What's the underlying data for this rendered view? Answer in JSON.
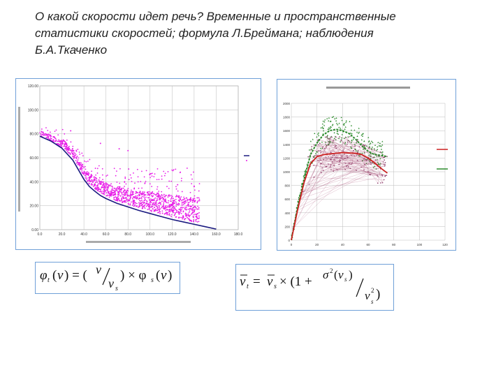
{
  "slide": {
    "title_lines": [
      "О какой скорости идет речь? Временные  и пространственные",
      "статистики скоростей; формула Л.Брейманa; наблюдения",
      "Б.А.Ткаченко"
    ]
  },
  "colors": {
    "frame": "#6fa0d8",
    "scatter_points": "#e81fe8",
    "model_line": "#1a1a80",
    "red_series": "#cc2020",
    "green_series": "#2a8a2a"
  },
  "chart_data": [
    {
      "type": "scatter",
      "title": "",
      "xlabel": "",
      "ylabel": "",
      "x_ticks": [
        "0.0",
        "20.0",
        "40.0",
        "60.0",
        "80.0",
        "100.0",
        "120.0",
        "140.0",
        "160.0",
        "180.0"
      ],
      "y_ticks": [
        "0.00",
        "20.00",
        "40.00",
        "60.00",
        "80.00",
        "100.00",
        "120.00"
      ],
      "xlim": [
        0,
        180
      ],
      "ylim": [
        0,
        120
      ],
      "grid": true,
      "legend": "right",
      "series": [
        {
          "kind": "line",
          "x": [
            0,
            10,
            20,
            30,
            35,
            40,
            45,
            50,
            55,
            60,
            70,
            80,
            90,
            100,
            110,
            120,
            130,
            140,
            150,
            160
          ],
          "y": [
            78,
            74,
            68,
            58,
            50,
            42,
            36,
            32,
            28.5,
            26,
            22,
            19,
            16,
            13.5,
            11,
            8.5,
            6.5,
            4.5,
            2.5,
            0.5
          ]
        },
        {
          "kind": "scatter",
          "description_points": "dense magenta cloud above the model curve, x 0–145, y 15–95"
        }
      ]
    },
    {
      "type": "line",
      "title": "",
      "x_ticks": [
        "0",
        "20",
        "40",
        "60",
        "80",
        "100",
        "120"
      ],
      "y_ticks": [
        "0",
        "200",
        "400",
        "600",
        "800",
        "1000",
        "1200",
        "1400",
        "1600",
        "1800",
        "2000"
      ],
      "xlim": [
        0,
        120
      ],
      "ylim": [
        0,
        2000
      ],
      "grid": true,
      "legend": "right",
      "series": [
        {
          "kind": "line",
          "color": "red",
          "x": [
            0,
            5,
            10,
            15,
            20,
            25,
            30,
            35,
            40,
            45,
            50,
            55,
            60,
            65,
            70,
            75
          ],
          "y": [
            0,
            450,
            850,
            1120,
            1220,
            1250,
            1260,
            1270,
            1280,
            1275,
            1270,
            1250,
            1200,
            1130,
            1050,
            980
          ]
        },
        {
          "kind": "line",
          "color": "green",
          "x": [
            0,
            5,
            10,
            15,
            20,
            25,
            30,
            35,
            40,
            45,
            50,
            55,
            60,
            65,
            70,
            75
          ],
          "y": [
            0,
            500,
            900,
            1250,
            1420,
            1540,
            1600,
            1620,
            1600,
            1560,
            1480,
            1380,
            1300,
            1250,
            1240,
            1220
          ]
        }
      ]
    }
  ]
}
